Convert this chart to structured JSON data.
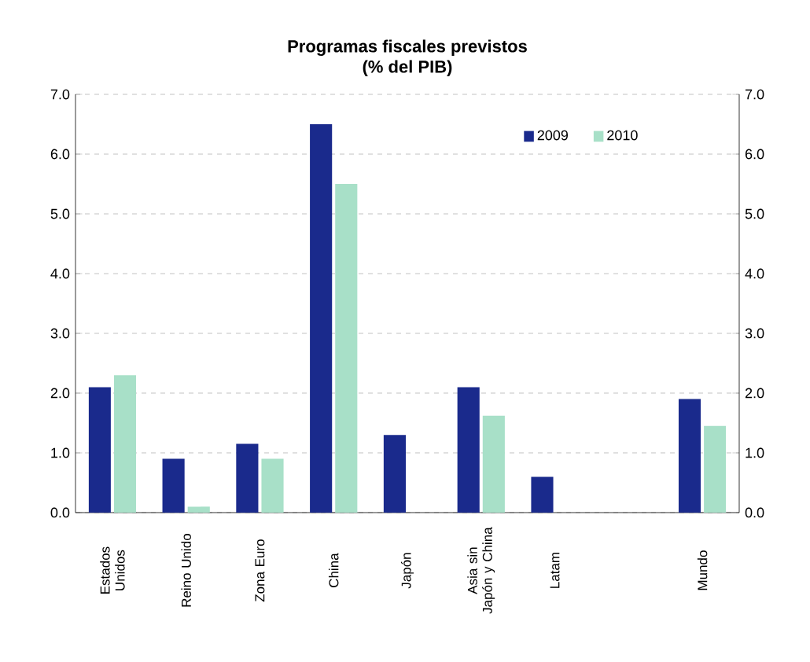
{
  "chart_data": {
    "type": "bar",
    "title": "Programas fiscales previstos",
    "subtitle": "(% del PIB)",
    "categories": [
      "Estados Unidos",
      "Reino Unido",
      "Zona Euro",
      "China",
      "Japón",
      "Asia sin Japón y China",
      "Latam",
      null,
      "Mundo"
    ],
    "series": [
      {
        "name": "2009",
        "color": "#1a2a8c",
        "values": [
          2.1,
          0.9,
          1.15,
          6.5,
          1.3,
          2.1,
          0.6,
          null,
          1.9
        ]
      },
      {
        "name": "2010",
        "color": "#a8e0c8",
        "values": [
          2.3,
          0.1,
          0.9,
          5.5,
          null,
          1.62,
          null,
          null,
          1.45
        ]
      }
    ],
    "ylim": [
      0,
      7
    ],
    "yticks": [
      {
        "value": 0,
        "label": "0.0"
      },
      {
        "value": 1,
        "label": "1.0"
      },
      {
        "value": 2,
        "label": "2.0"
      },
      {
        "value": 3,
        "label": "3.0"
      },
      {
        "value": 4,
        "label": "4.0"
      },
      {
        "value": 5,
        "label": "5.0"
      },
      {
        "value": 6,
        "label": "6.0"
      },
      {
        "value": 7,
        "label": "7.0"
      }
    ],
    "y2lim": [
      0,
      7
    ],
    "y2ticks": [
      {
        "value": 0,
        "label": "0.0"
      },
      {
        "value": 1,
        "label": "1.0"
      },
      {
        "value": 2,
        "label": "2.0"
      },
      {
        "value": 3,
        "label": "3.0"
      },
      {
        "value": 4,
        "label": "4.0"
      },
      {
        "value": 5,
        "label": "5.0"
      },
      {
        "value": 6,
        "label": "6.0"
      },
      {
        "value": 7,
        "label": "7.0"
      }
    ],
    "grid": "y",
    "legend": "top right"
  }
}
